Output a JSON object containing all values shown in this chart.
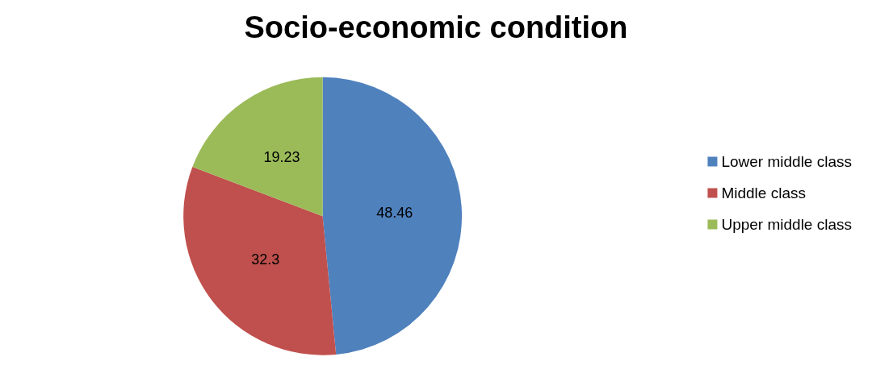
{
  "chart_data": {
    "type": "pie",
    "title": "Socio-economic condition",
    "categories": [
      "Lower middle class",
      "Middle class",
      "Upper middle class"
    ],
    "values": [
      48.46,
      32.3,
      19.23
    ],
    "colors": [
      "#4f81bd",
      "#c0504d",
      "#9bbb59"
    ],
    "data_labels": true,
    "legend": "right"
  }
}
